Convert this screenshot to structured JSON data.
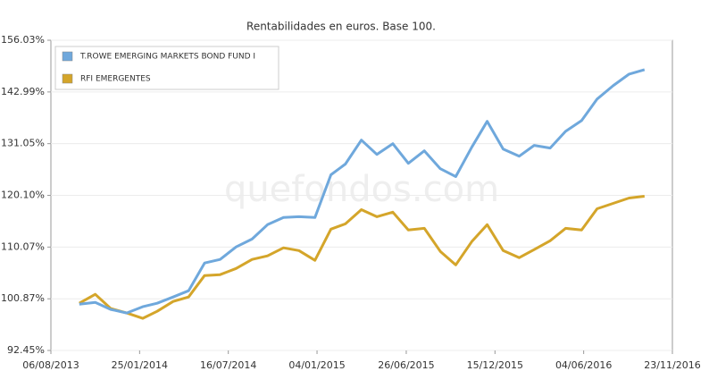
{
  "chart_data": {
    "type": "line",
    "title": "Rentabilidades en euros. Base 100.",
    "watermark": "quefondos.com",
    "log_scale": true,
    "grid": true,
    "legend": "top-left",
    "x": [
      "2013-09-30",
      "2013-10-31",
      "2013-11-30",
      "2013-12-31",
      "2014-01-31",
      "2014-02-28",
      "2014-03-31",
      "2014-04-30",
      "2014-05-31",
      "2014-06-30",
      "2014-07-31",
      "2014-08-31",
      "2014-09-30",
      "2014-10-31",
      "2014-11-30",
      "2014-12-31",
      "2015-01-31",
      "2015-02-28",
      "2015-03-31",
      "2015-04-30",
      "2015-05-31",
      "2015-06-30",
      "2015-07-31",
      "2015-08-31",
      "2015-09-30",
      "2015-10-31",
      "2015-11-30",
      "2015-12-31",
      "2016-01-31",
      "2016-02-29",
      "2016-03-31",
      "2016-04-30",
      "2016-05-31",
      "2016-06-30",
      "2016-07-31",
      "2016-08-31",
      "2016-09-30"
    ],
    "series": [
      {
        "name": "T.ROWE EMERGING MARKETS BOND FUND I",
        "color": "#6fa8dc",
        "values": [
          99.96,
          100.26,
          99.07,
          98.48,
          99.52,
          100.11,
          101.17,
          102.25,
          107.15,
          107.79,
          110.09,
          111.57,
          114.3,
          115.69,
          115.86,
          115.69,
          124.34,
          126.61,
          131.84,
          128.7,
          131.05,
          126.77,
          129.48,
          125.63,
          123.96,
          130.26,
          136.08,
          129.87,
          128.31,
          130.66,
          130.07,
          133.81,
          136.25,
          141.28,
          144.51,
          147.37,
          148.48
        ]
      },
      {
        "name": "RFI EMERGENTES",
        "color": "#d4a52a",
        "values": [
          100.11,
          101.63,
          99.22,
          98.48,
          97.6,
          98.77,
          100.42,
          101.17,
          104.9,
          105.06,
          106.16,
          107.79,
          108.44,
          109.92,
          109.42,
          107.63,
          113.44,
          114.47,
          117.24,
          115.86,
          116.74,
          113.27,
          113.61,
          109.26,
          106.8,
          111.07,
          114.3,
          109.42,
          108.12,
          109.59,
          111.24,
          113.61,
          113.27,
          117.41,
          118.48,
          119.56,
          119.92
        ]
      }
    ],
    "xlim": [
      "2013-08-06",
      "2016-11-23"
    ],
    "xticks": [
      {
        "value": "2013-08-06",
        "label": "06/08/2013"
      },
      {
        "value": "2014-01-25",
        "label": "25/01/2014"
      },
      {
        "value": "2014-07-16",
        "label": "16/07/2014"
      },
      {
        "value": "2015-01-04",
        "label": "04/01/2015"
      },
      {
        "value": "2015-06-26",
        "label": "26/06/2015"
      },
      {
        "value": "2015-12-15",
        "label": "15/12/2015"
      },
      {
        "value": "2016-06-04",
        "label": "04/06/2016"
      },
      {
        "value": "2016-11-23",
        "label": "23/11/2016"
      }
    ],
    "ylim": [
      92.45,
      156.03
    ],
    "yticks": [
      {
        "value": 92.45,
        "label": "92.45%"
      },
      {
        "value": 100.87,
        "label": "100.87%"
      },
      {
        "value": 110.07,
        "label": "110.07%"
      },
      {
        "value": 120.1,
        "label": "120.10%"
      },
      {
        "value": 131.05,
        "label": "131.05%"
      },
      {
        "value": 142.99,
        "label": "142.99%"
      },
      {
        "value": 156.03,
        "label": "156.03%"
      }
    ]
  }
}
